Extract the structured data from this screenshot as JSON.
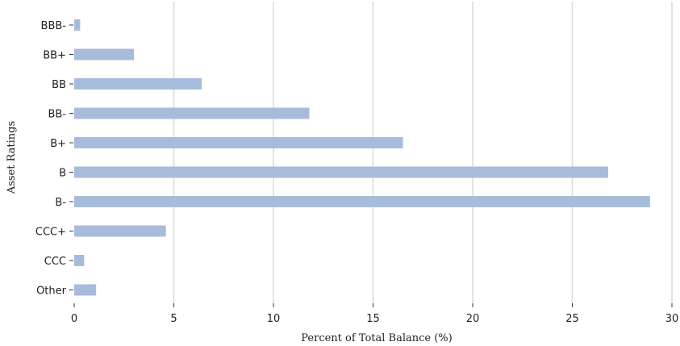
{
  "chart_data": {
    "type": "bar",
    "orientation": "horizontal",
    "title": "",
    "xlabel": "Percent of Total Balance (%)",
    "ylabel": "Asset Ratings",
    "categories": [
      "BBB-",
      "BB+",
      "BB",
      "BB-",
      "B+",
      "B",
      "B-",
      "CCC+",
      "CCC",
      "Other"
    ],
    "values": [
      0.3,
      3.0,
      6.4,
      11.8,
      16.5,
      26.8,
      28.9,
      4.6,
      0.5,
      1.1
    ],
    "xlim": [
      0,
      30
    ],
    "xticks": [
      0,
      5,
      10,
      15,
      20,
      25,
      30
    ],
    "grid": "vertical",
    "bar_color": "#a7bcda"
  }
}
